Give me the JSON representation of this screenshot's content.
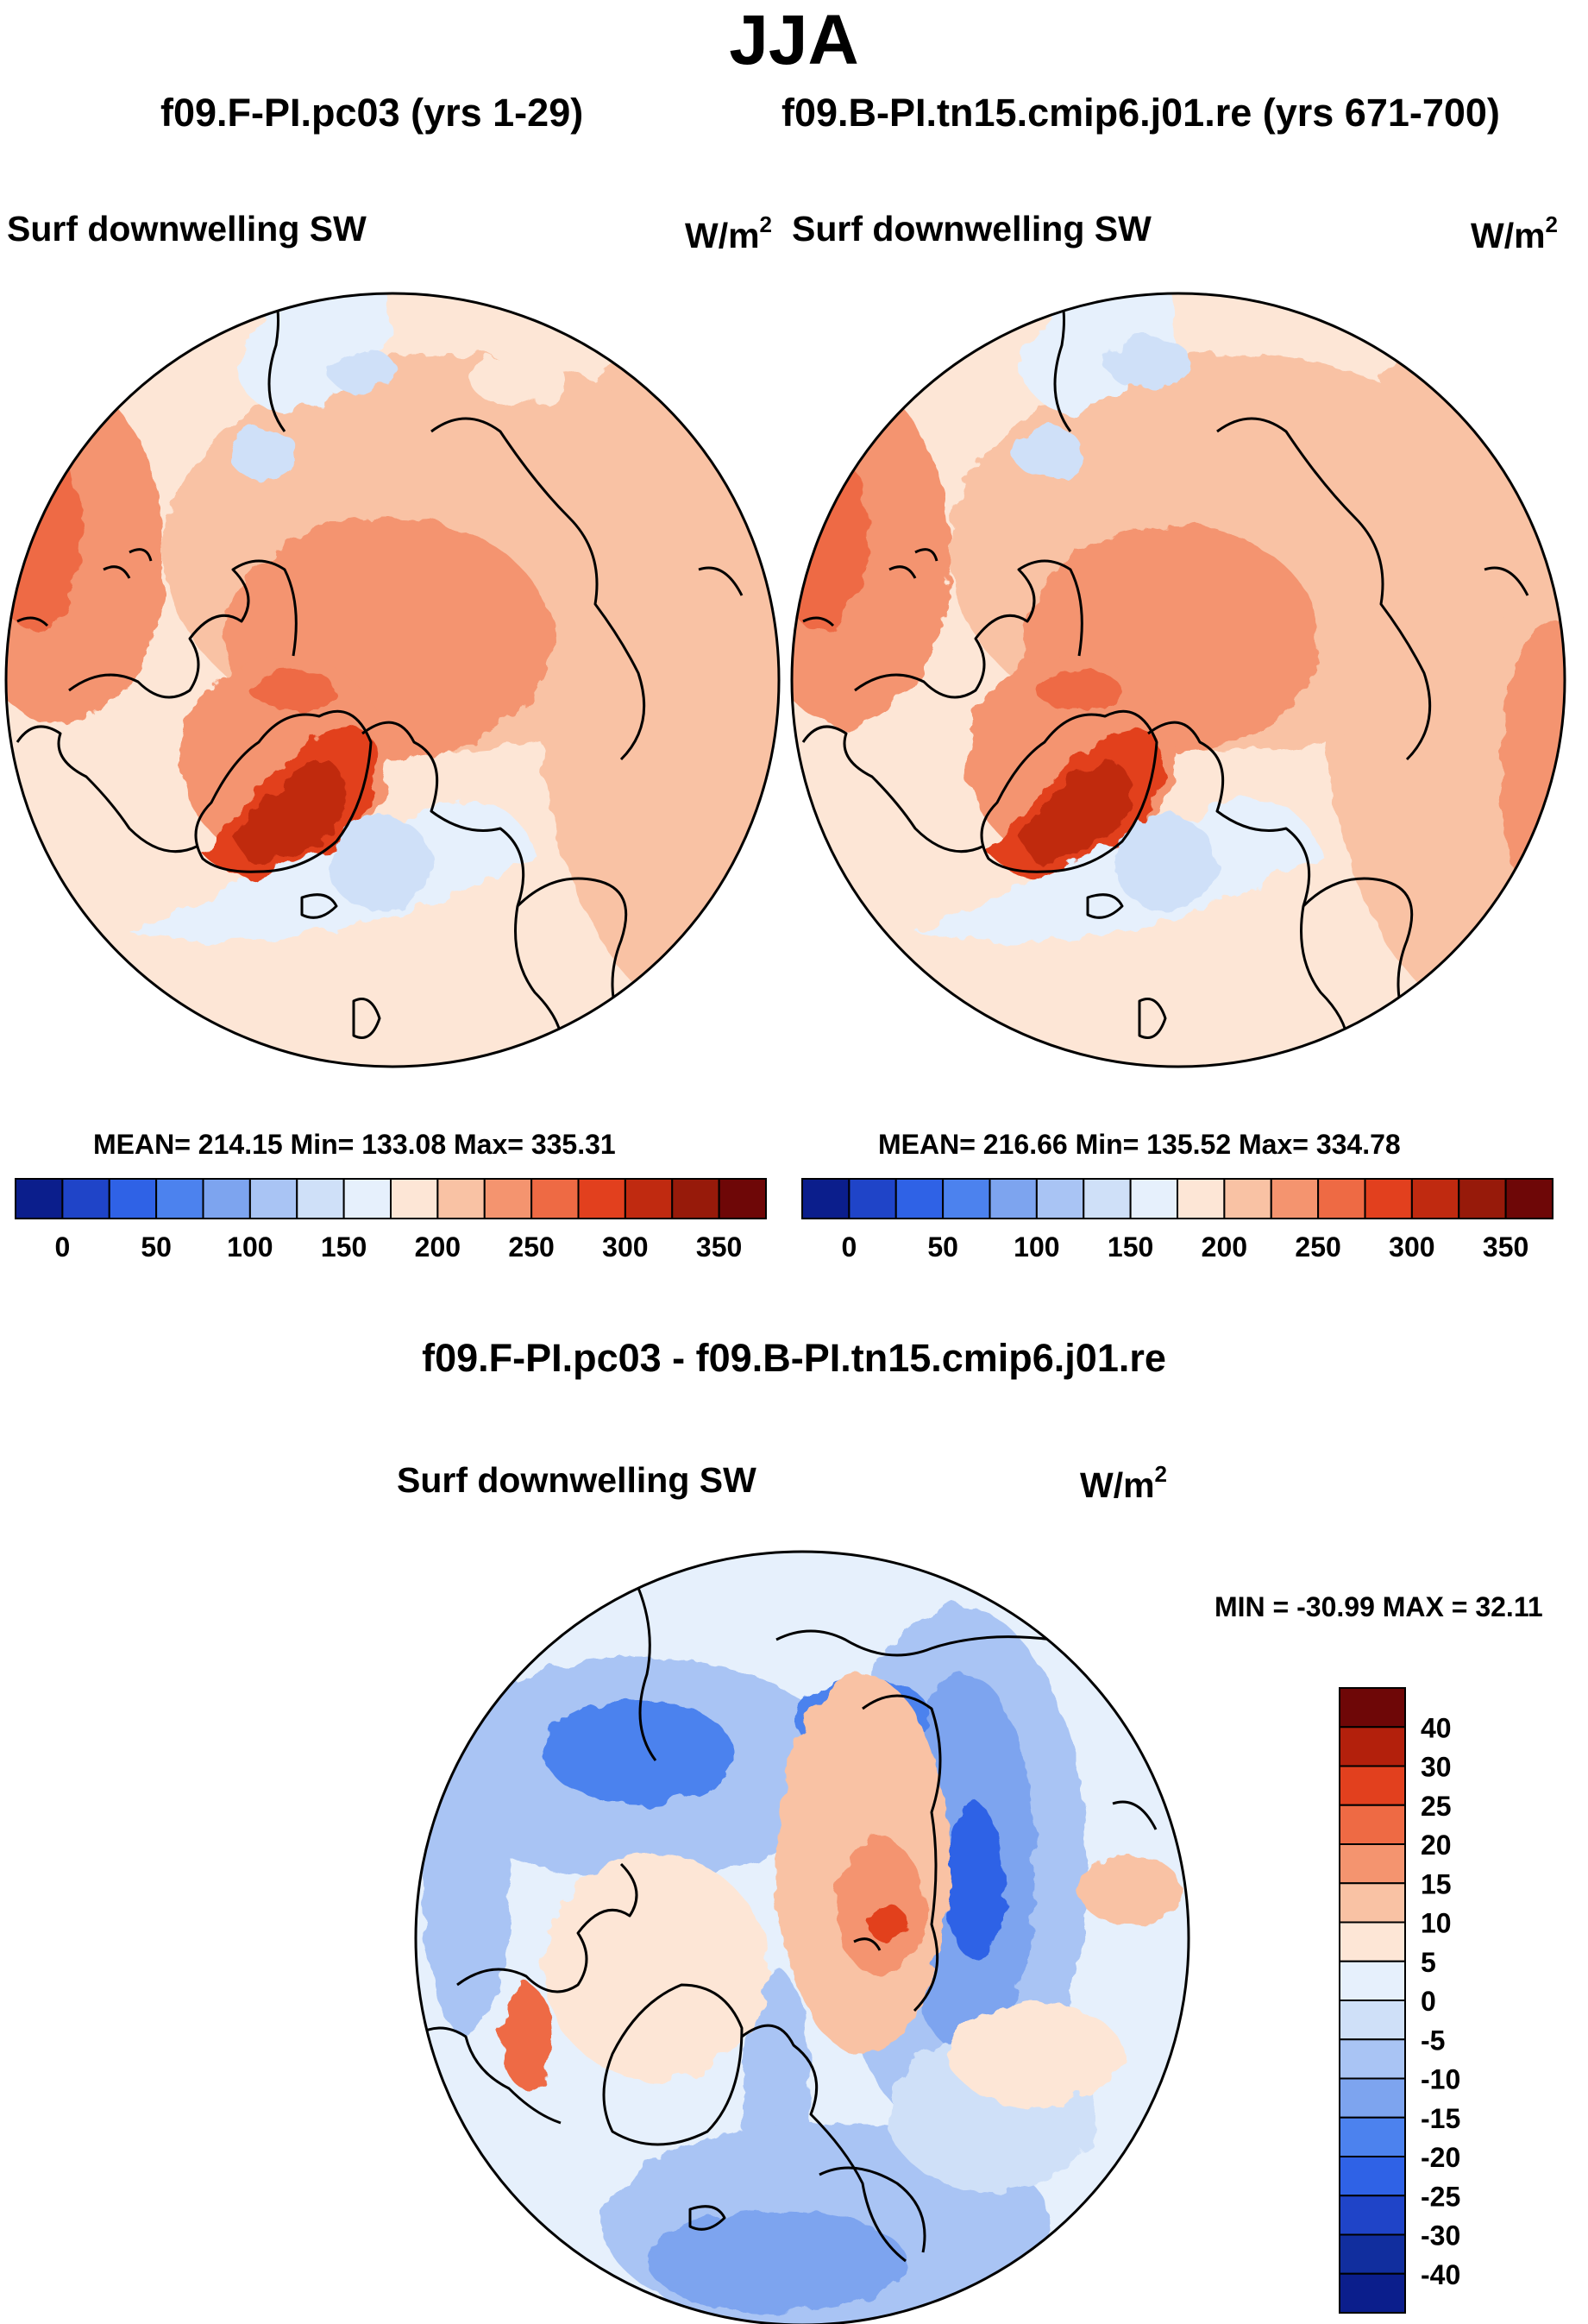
{
  "figure": {
    "season": "JJA",
    "left_case": "f09.F-PI.pc03 (yrs 1-29)",
    "right_case": "f09.B-PI.tn15.cmip6.j01.re (yrs 671-700)",
    "variable": "Surf downwelling SW",
    "units_base": "W/m",
    "units_exp": "2",
    "diff_title": "f09.F-PI.pc03 - f09.B-PI.tn15.cmip6.j01.re"
  },
  "chart_data": [
    {
      "type": "heatmap",
      "panel": "left",
      "projection": "north polar stereographic",
      "title": "f09.F-PI.pc03 (yrs 1-29)",
      "variable": "Surf downwelling SW",
      "units": "W/m2",
      "stats_text": "MEAN= 214.15  Min= 133.08  Max= 335.31",
      "mean": 214.15,
      "min": 133.08,
      "max": 335.31,
      "colorbar_labels": [
        "0",
        "50",
        "100",
        "150",
        "200",
        "250",
        "300",
        "350"
      ],
      "colorbar_levels": [
        0,
        25,
        50,
        75,
        100,
        125,
        150,
        175,
        200,
        225,
        250,
        275,
        300,
        325,
        350
      ],
      "colorbar_colors": [
        "#0b1e8c",
        "#1f44c8",
        "#2f62e6",
        "#4c82ee",
        "#7da4ef",
        "#a9c4f4",
        "#cfe0f8",
        "#e6f0fc",
        "#fde6d6",
        "#f9c2a4",
        "#f4946f",
        "#ee6a44",
        "#e2401e",
        "#c02a10",
        "#971a0a",
        "#6e0707"
      ]
    },
    {
      "type": "heatmap",
      "panel": "right",
      "projection": "north polar stereographic",
      "title": "f09.B-PI.tn15.cmip6.j01.re (yrs 671-700)",
      "variable": "Surf downwelling SW",
      "units": "W/m2",
      "stats_text": "MEAN= 216.66  Min= 135.52  Max= 334.78",
      "mean": 216.66,
      "min": 135.52,
      "max": 334.78,
      "colorbar_labels": [
        "0",
        "50",
        "100",
        "150",
        "200",
        "250",
        "300",
        "350"
      ],
      "colorbar_levels": [
        0,
        25,
        50,
        75,
        100,
        125,
        150,
        175,
        200,
        225,
        250,
        275,
        300,
        325,
        350
      ],
      "colorbar_colors": [
        "#0b1e8c",
        "#1f44c8",
        "#2f62e6",
        "#4c82ee",
        "#7da4ef",
        "#a9c4f4",
        "#cfe0f8",
        "#e6f0fc",
        "#fde6d6",
        "#f9c2a4",
        "#f4946f",
        "#ee6a44",
        "#e2401e",
        "#c02a10",
        "#971a0a",
        "#6e0707"
      ]
    },
    {
      "type": "heatmap",
      "panel": "difference",
      "projection": "north polar stereographic",
      "title": "f09.F-PI.pc03 - f09.B-PI.tn15.cmip6.j01.re",
      "variable": "Surf downwelling SW",
      "units": "W/m2",
      "stats_text": "MIN = -30.99 MAX =  32.11",
      "min": -30.99,
      "max": 32.11,
      "colorbar_labels": [
        "40",
        "30",
        "25",
        "20",
        "15",
        "10",
        "5",
        "0",
        "-5",
        "-10",
        "-15",
        "-20",
        "-25",
        "-30",
        "-40"
      ],
      "colorbar_colors": [
        "#6e0707",
        "#b3200c",
        "#e2401e",
        "#ee6a44",
        "#f4946f",
        "#f9c2a4",
        "#fde6d6",
        "#e6f0fc",
        "#cfe0f8",
        "#a9c4f4",
        "#7da4ef",
        "#4c82ee",
        "#2f62e6",
        "#1f44c8",
        "#112e9e",
        "#0b1e8c"
      ]
    }
  ]
}
